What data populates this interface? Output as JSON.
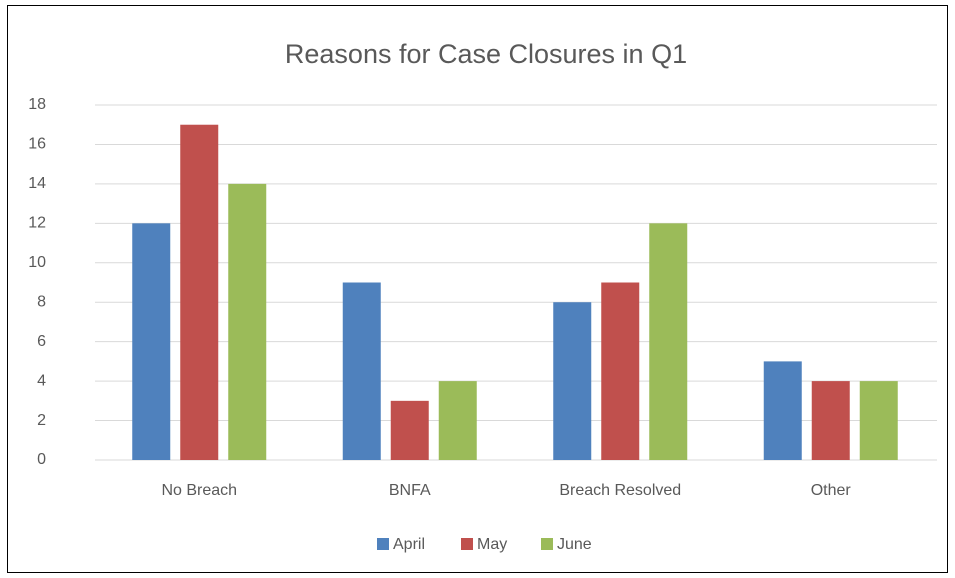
{
  "chart_data": {
    "type": "bar",
    "title": "Reasons for Case Closures in Q1",
    "categories": [
      "No Breach",
      "BNFA",
      "Breach Resolved",
      "Other"
    ],
    "series": [
      {
        "name": "April",
        "color": "#4f81bd",
        "values": [
          12,
          9,
          8,
          5
        ]
      },
      {
        "name": "May",
        "color": "#c0504d",
        "values": [
          17,
          3,
          9,
          4
        ]
      },
      {
        "name": "June",
        "color": "#9bbb59",
        "values": [
          14,
          4,
          12,
          4
        ]
      }
    ],
    "ylim": [
      0,
      18
    ],
    "yticks": [
      0,
      2,
      4,
      6,
      8,
      10,
      12,
      14,
      16,
      18
    ],
    "grid": true,
    "legend": "bottom"
  }
}
